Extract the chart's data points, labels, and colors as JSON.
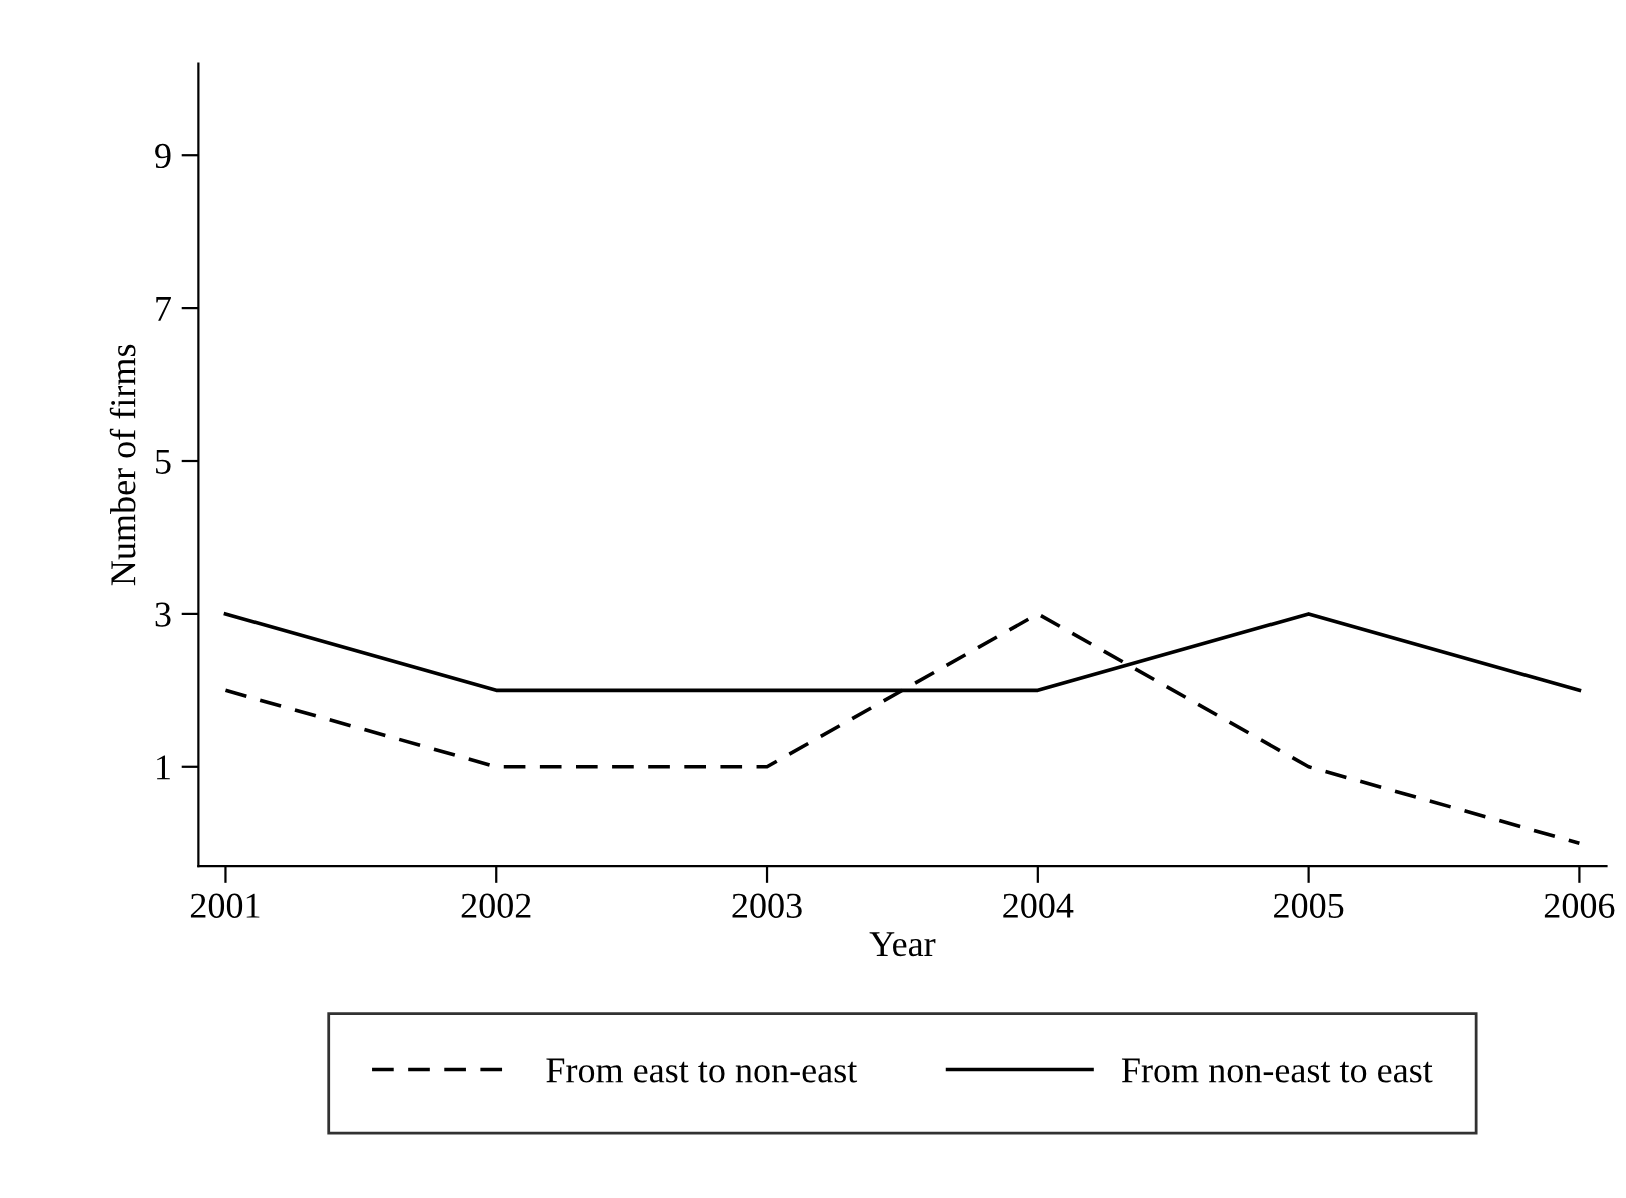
{
  "chart_data": {
    "type": "line",
    "xlabel": "Year",
    "ylabel": "Number of firms",
    "x": [
      2001,
      2002,
      2003,
      2004,
      2005,
      2006
    ],
    "series": [
      {
        "name": "From east to non-east",
        "color": "#000000",
        "line_style": "dashed",
        "values": [
          2,
          1,
          1,
          3,
          1,
          0
        ]
      },
      {
        "name": "From non-east to east",
        "color": "#000000",
        "line_style": "solid",
        "values": [
          3,
          2,
          2,
          2,
          3,
          2
        ]
      }
    ],
    "xlim": [
      2000.9,
      2006.1
    ],
    "ylim": [
      -0.3,
      10.2
    ],
    "xticks": [
      2001,
      2002,
      2003,
      2004,
      2005,
      2006
    ],
    "yticks": [
      1,
      3,
      5,
      7,
      9
    ],
    "grid": false,
    "legend": "bottom",
    "marker": "none"
  }
}
